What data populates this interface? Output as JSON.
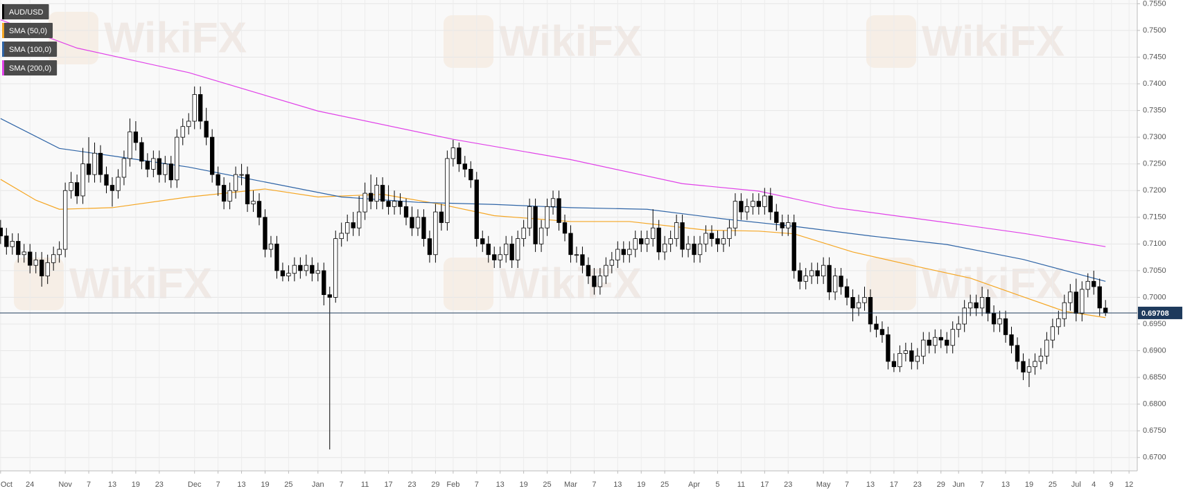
{
  "chart_data": {
    "type": "candlestick",
    "watermark": "WikiFX",
    "xlim": [
      -0.1,
      193.4
    ],
    "ylim": [
      0.6675,
      0.7557
    ],
    "grid": true,
    "legend": "top-left",
    "last_price": 0.69708,
    "last_price_color": "#1e3a5c",
    "candles": {
      "name": "AUD/USD",
      "color": "#000000",
      "up_color": "#ffffff",
      "down_color": "#000000",
      "open": [
        0.713,
        0.7115,
        0.7095,
        0.7105,
        0.708,
        0.7085,
        0.706,
        0.707,
        0.704,
        0.7065,
        0.708,
        0.709,
        0.72,
        0.7215,
        0.719,
        0.725,
        0.723,
        0.727,
        0.723,
        0.721,
        0.72,
        0.7225,
        0.726,
        0.731,
        0.729,
        0.7255,
        0.724,
        0.726,
        0.723,
        0.725,
        0.722,
        0.73,
        0.732,
        0.733,
        0.738,
        0.733,
        0.73,
        0.723,
        0.721,
        0.718,
        0.72,
        0.723,
        0.723,
        0.7175,
        0.718,
        0.715,
        0.709,
        0.71,
        0.705,
        0.704,
        0.7045,
        0.706,
        0.705,
        0.706,
        0.7045,
        0.705,
        0.7005,
        0.7,
        0.711,
        0.712,
        0.714,
        0.713,
        0.716,
        0.7195,
        0.718,
        0.721,
        0.718,
        0.717,
        0.718,
        0.717,
        0.715,
        0.713,
        0.715,
        0.711,
        0.708,
        0.716,
        0.714,
        0.726,
        0.728,
        0.725,
        0.724,
        0.722,
        0.711,
        0.71,
        0.708,
        0.707,
        0.708,
        0.71,
        0.707,
        0.711,
        0.713,
        0.717,
        0.71,
        0.713,
        0.717,
        0.7185,
        0.714,
        0.712,
        0.708,
        0.708,
        0.706,
        0.704,
        0.702,
        0.704,
        0.706,
        0.707,
        0.709,
        0.708,
        0.709,
        0.711,
        0.71,
        0.711,
        0.713,
        0.7085,
        0.71,
        0.711,
        0.714,
        0.709,
        0.71,
        0.708,
        0.71,
        0.712,
        0.711,
        0.71,
        0.711,
        0.713,
        0.718,
        0.716,
        0.717,
        0.718,
        0.717,
        0.719,
        0.716,
        0.714,
        0.713,
        0.714,
        0.705,
        0.703,
        0.704,
        0.705,
        0.704,
        0.706,
        0.701,
        0.704,
        0.702,
        0.7,
        0.698,
        0.699,
        0.7,
        0.695,
        0.694,
        0.693,
        0.688,
        0.687,
        0.6895,
        0.69,
        0.688,
        0.689,
        0.692,
        0.691,
        0.6925,
        0.692,
        0.691,
        0.694,
        0.695,
        0.698,
        0.699,
        0.698,
        0.7,
        0.697,
        0.695,
        0.696,
        0.693,
        0.691,
        0.688,
        0.686,
        0.687,
        0.688,
        0.689,
        0.692,
        0.6945,
        0.696,
        0.699,
        0.701,
        0.697,
        0.7015,
        0.703,
        0.702,
        0.698
      ],
      "high": [
        0.7145,
        0.713,
        0.712,
        0.712,
        0.71,
        0.71,
        0.7085,
        0.7085,
        0.708,
        0.7095,
        0.7105,
        0.7215,
        0.7235,
        0.723,
        0.728,
        0.73,
        0.729,
        0.7285,
        0.7245,
        0.7225,
        0.724,
        0.7275,
        0.7335,
        0.733,
        0.73,
        0.727,
        0.7275,
        0.7275,
        0.7265,
        0.7265,
        0.7315,
        0.7335,
        0.7345,
        0.7395,
        0.7395,
        0.7355,
        0.7315,
        0.7245,
        0.7225,
        0.7215,
        0.7245,
        0.725,
        0.7245,
        0.72,
        0.7195,
        0.7165,
        0.7115,
        0.7115,
        0.7065,
        0.706,
        0.7075,
        0.7075,
        0.708,
        0.7075,
        0.7065,
        0.7065,
        0.702,
        0.7125,
        0.714,
        0.7155,
        0.716,
        0.719,
        0.7215,
        0.723,
        0.7225,
        0.7225,
        0.721,
        0.72,
        0.7195,
        0.7185,
        0.717,
        0.7165,
        0.7165,
        0.7125,
        0.7175,
        0.7175,
        0.7275,
        0.7295,
        0.729,
        0.7265,
        0.7255,
        0.7235,
        0.7125,
        0.7115,
        0.7095,
        0.7095,
        0.7115,
        0.7115,
        0.7125,
        0.7145,
        0.7185,
        0.7185,
        0.7145,
        0.7185,
        0.72,
        0.72,
        0.7155,
        0.7135,
        0.7095,
        0.7095,
        0.7075,
        0.7055,
        0.7055,
        0.7075,
        0.7085,
        0.7105,
        0.7105,
        0.7105,
        0.7125,
        0.7125,
        0.7125,
        0.7165,
        0.7145,
        0.7115,
        0.7125,
        0.7155,
        0.7155,
        0.7115,
        0.7115,
        0.7115,
        0.7135,
        0.7135,
        0.7125,
        0.7125,
        0.7145,
        0.7195,
        0.7195,
        0.7185,
        0.7195,
        0.7195,
        0.7205,
        0.7205,
        0.7175,
        0.7155,
        0.7155,
        0.7155,
        0.7065,
        0.7055,
        0.7065,
        0.7065,
        0.7075,
        0.7075,
        0.7055,
        0.7055,
        0.7035,
        0.7015,
        0.7005,
        0.702,
        0.7015,
        0.6965,
        0.6955,
        0.6945,
        0.6895,
        0.691,
        0.6915,
        0.6915,
        0.6905,
        0.6935,
        0.6935,
        0.694,
        0.694,
        0.6935,
        0.6955,
        0.6965,
        0.6995,
        0.7005,
        0.7005,
        0.702,
        0.7015,
        0.6985,
        0.6975,
        0.6975,
        0.6945,
        0.6925,
        0.6895,
        0.6885,
        0.6895,
        0.6905,
        0.6935,
        0.696,
        0.6975,
        0.7005,
        0.7025,
        0.7035,
        0.703,
        0.7045,
        0.705,
        0.7035,
        0.6995
      ],
      "low": [
        0.71,
        0.708,
        0.708,
        0.7065,
        0.7065,
        0.7045,
        0.7045,
        0.702,
        0.7025,
        0.705,
        0.7065,
        0.7075,
        0.7185,
        0.7175,
        0.7175,
        0.7215,
        0.7215,
        0.7215,
        0.7195,
        0.717,
        0.7185,
        0.721,
        0.7245,
        0.7275,
        0.724,
        0.7225,
        0.7225,
        0.7215,
        0.7215,
        0.7205,
        0.7205,
        0.7285,
        0.7305,
        0.7315,
        0.7315,
        0.7285,
        0.7215,
        0.719,
        0.7165,
        0.7165,
        0.7185,
        0.721,
        0.716,
        0.716,
        0.7135,
        0.7075,
        0.7075,
        0.7035,
        0.703,
        0.703,
        0.703,
        0.7035,
        0.704,
        0.703,
        0.703,
        0.6985,
        0.6715,
        0.699,
        0.7095,
        0.7105,
        0.7115,
        0.7115,
        0.7145,
        0.7165,
        0.7165,
        0.7165,
        0.7155,
        0.7155,
        0.7155,
        0.7135,
        0.7115,
        0.7115,
        0.7095,
        0.7065,
        0.7065,
        0.7125,
        0.7125,
        0.7245,
        0.7235,
        0.7225,
        0.7205,
        0.7095,
        0.7085,
        0.7065,
        0.7055,
        0.7055,
        0.7065,
        0.7055,
        0.7055,
        0.7095,
        0.7115,
        0.7085,
        0.7085,
        0.7115,
        0.7155,
        0.7125,
        0.7105,
        0.7065,
        0.7065,
        0.7045,
        0.7025,
        0.7005,
        0.7005,
        0.7025,
        0.7045,
        0.7055,
        0.7065,
        0.7065,
        0.7075,
        0.7085,
        0.7085,
        0.7095,
        0.707,
        0.707,
        0.7085,
        0.7095,
        0.7075,
        0.7075,
        0.7065,
        0.7065,
        0.7085,
        0.7095,
        0.7085,
        0.7085,
        0.7095,
        0.7115,
        0.7145,
        0.7145,
        0.7155,
        0.7155,
        0.7155,
        0.7145,
        0.7125,
        0.7115,
        0.7115,
        0.7035,
        0.7015,
        0.7015,
        0.7025,
        0.7025,
        0.7025,
        0.6995,
        0.6995,
        0.7005,
        0.6985,
        0.6955,
        0.6965,
        0.6975,
        0.6935,
        0.6925,
        0.6915,
        0.6865,
        0.686,
        0.686,
        0.688,
        0.6865,
        0.6865,
        0.6875,
        0.6895,
        0.6895,
        0.6905,
        0.6895,
        0.6895,
        0.6925,
        0.6935,
        0.6965,
        0.6965,
        0.6965,
        0.6955,
        0.6935,
        0.6935,
        0.6915,
        0.6895,
        0.6865,
        0.6845,
        0.6832,
        0.6855,
        0.6865,
        0.6875,
        0.6905,
        0.693,
        0.6945,
        0.6975,
        0.6955,
        0.6955,
        0.7,
        0.7005,
        0.6965,
        0.6965
      ],
      "close": [
        0.7115,
        0.7095,
        0.7105,
        0.708,
        0.7085,
        0.706,
        0.707,
        0.704,
        0.7065,
        0.708,
        0.709,
        0.72,
        0.7215,
        0.719,
        0.725,
        0.723,
        0.727,
        0.723,
        0.721,
        0.72,
        0.7225,
        0.726,
        0.731,
        0.729,
        0.7255,
        0.724,
        0.726,
        0.723,
        0.725,
        0.722,
        0.73,
        0.732,
        0.733,
        0.738,
        0.733,
        0.73,
        0.723,
        0.721,
        0.718,
        0.72,
        0.723,
        0.723,
        0.7175,
        0.718,
        0.715,
        0.709,
        0.71,
        0.705,
        0.704,
        0.7045,
        0.706,
        0.705,
        0.706,
        0.7045,
        0.705,
        0.7005,
        0.7,
        0.711,
        0.712,
        0.714,
        0.713,
        0.716,
        0.7195,
        0.718,
        0.721,
        0.718,
        0.717,
        0.718,
        0.717,
        0.715,
        0.713,
        0.715,
        0.711,
        0.708,
        0.716,
        0.714,
        0.726,
        0.728,
        0.725,
        0.724,
        0.722,
        0.711,
        0.71,
        0.708,
        0.707,
        0.708,
        0.71,
        0.707,
        0.711,
        0.713,
        0.717,
        0.71,
        0.713,
        0.717,
        0.7185,
        0.714,
        0.712,
        0.708,
        0.708,
        0.706,
        0.704,
        0.702,
        0.704,
        0.706,
        0.707,
        0.709,
        0.708,
        0.709,
        0.711,
        0.71,
        0.711,
        0.713,
        0.7085,
        0.71,
        0.711,
        0.714,
        0.709,
        0.71,
        0.708,
        0.71,
        0.712,
        0.711,
        0.71,
        0.711,
        0.713,
        0.718,
        0.716,
        0.717,
        0.718,
        0.717,
        0.719,
        0.716,
        0.714,
        0.713,
        0.714,
        0.705,
        0.703,
        0.704,
        0.705,
        0.704,
        0.706,
        0.701,
        0.704,
        0.702,
        0.7,
        0.698,
        0.699,
        0.7,
        0.695,
        0.694,
        0.693,
        0.688,
        0.687,
        0.6895,
        0.69,
        0.688,
        0.689,
        0.692,
        0.691,
        0.6925,
        0.692,
        0.691,
        0.694,
        0.695,
        0.698,
        0.699,
        0.698,
        0.7,
        0.697,
        0.695,
        0.696,
        0.693,
        0.691,
        0.688,
        0.686,
        0.687,
        0.688,
        0.689,
        0.692,
        0.6945,
        0.696,
        0.699,
        0.701,
        0.697,
        0.7015,
        0.703,
        0.702,
        0.698,
        0.6971
      ]
    },
    "series": [
      {
        "name": "SMA (50,0)",
        "color": "#f5a623",
        "x": [
          0,
          6,
          10,
          19,
          32,
          45,
          54,
          65,
          75,
          84,
          97,
          107,
          120,
          129,
          135,
          145,
          155,
          165,
          174,
          181,
          188
        ],
        "values": [
          0.7221,
          0.7182,
          0.7165,
          0.7168,
          0.7188,
          0.7203,
          0.7188,
          0.7193,
          0.7174,
          0.7153,
          0.7142,
          0.7142,
          0.7126,
          0.7124,
          0.7119,
          0.7085,
          0.706,
          0.7036,
          0.7001,
          0.6974,
          0.6962
        ]
      },
      {
        "name": "SMA (100,0)",
        "color": "#2e64a6",
        "x": [
          0,
          10,
          19,
          32,
          45,
          58,
          71,
          84,
          97,
          110,
          123,
          135,
          148,
          161,
          174,
          188
        ],
        "values": [
          0.7335,
          0.7279,
          0.7265,
          0.7244,
          0.7216,
          0.7188,
          0.7178,
          0.7174,
          0.7168,
          0.7165,
          0.7147,
          0.7133,
          0.7115,
          0.7099,
          0.7071,
          0.703
        ]
      },
      {
        "name": "SMA (200,0)",
        "color": "#e040e8",
        "x": [
          0,
          13,
          32,
          54,
          77,
          97,
          116,
          129,
          142,
          161,
          174,
          188
        ],
        "values": [
          0.752,
          0.7467,
          0.7421,
          0.7349,
          0.7296,
          0.7258,
          0.7213,
          0.7199,
          0.7168,
          0.714,
          0.712,
          0.7095
        ]
      }
    ],
    "yticks": [
      {
        "value": 0.755,
        "label": "0.7550"
      },
      {
        "value": 0.75,
        "label": "0.7500"
      },
      {
        "value": 0.745,
        "label": "0.7450"
      },
      {
        "value": 0.74,
        "label": "0.7400"
      },
      {
        "value": 0.735,
        "label": "0.7350"
      },
      {
        "value": 0.73,
        "label": "0.7300"
      },
      {
        "value": 0.725,
        "label": "0.7250"
      },
      {
        "value": 0.72,
        "label": "0.7200"
      },
      {
        "value": 0.715,
        "label": "0.7150"
      },
      {
        "value": 0.71,
        "label": "0.7100"
      },
      {
        "value": 0.705,
        "label": "0.7050"
      },
      {
        "value": 0.7,
        "label": "0.7000"
      },
      {
        "value": 0.695,
        "label": "0.6950"
      },
      {
        "value": 0.69,
        "label": "0.6900"
      },
      {
        "value": 0.685,
        "label": "0.6850"
      },
      {
        "value": 0.68,
        "label": "0.6800"
      },
      {
        "value": 0.675,
        "label": "0.6750"
      },
      {
        "value": 0.67,
        "label": "0.6700"
      }
    ],
    "xticks": [
      {
        "value": 0,
        "label": "Oct"
      },
      {
        "value": 5,
        "label": "24"
      },
      {
        "value": 11,
        "label": "Nov"
      },
      {
        "value": 15,
        "label": "7"
      },
      {
        "value": 19,
        "label": "13"
      },
      {
        "value": 23,
        "label": "19"
      },
      {
        "value": 27,
        "label": "23"
      },
      {
        "value": 33,
        "label": "Dec"
      },
      {
        "value": 37,
        "label": "7"
      },
      {
        "value": 41,
        "label": "13"
      },
      {
        "value": 45,
        "label": "19"
      },
      {
        "value": 49,
        "label": "25"
      },
      {
        "value": 54,
        "label": "Jan"
      },
      {
        "value": 58,
        "label": "7"
      },
      {
        "value": 62,
        "label": "11"
      },
      {
        "value": 66,
        "label": "17"
      },
      {
        "value": 70,
        "label": "23"
      },
      {
        "value": 74,
        "label": "29"
      },
      {
        "value": 77,
        "label": "Feb"
      },
      {
        "value": 81,
        "label": "7"
      },
      {
        "value": 85,
        "label": "13"
      },
      {
        "value": 89,
        "label": "19"
      },
      {
        "value": 93,
        "label": "25"
      },
      {
        "value": 97,
        "label": "Mar"
      },
      {
        "value": 101,
        "label": "7"
      },
      {
        "value": 105,
        "label": "13"
      },
      {
        "value": 109,
        "label": "19"
      },
      {
        "value": 113,
        "label": "25"
      },
      {
        "value": 118,
        "label": "Apr"
      },
      {
        "value": 122,
        "label": "5"
      },
      {
        "value": 126,
        "label": "11"
      },
      {
        "value": 130,
        "label": "17"
      },
      {
        "value": 134,
        "label": "23"
      },
      {
        "value": 140,
        "label": "May"
      },
      {
        "value": 144,
        "label": "7"
      },
      {
        "value": 148,
        "label": "13"
      },
      {
        "value": 152,
        "label": "17"
      },
      {
        "value": 156,
        "label": "23"
      },
      {
        "value": 160,
        "label": "29"
      },
      {
        "value": 163,
        "label": "Jun"
      },
      {
        "value": 167,
        "label": "7"
      },
      {
        "value": 171,
        "label": "13"
      },
      {
        "value": 175,
        "label": "19"
      },
      {
        "value": 179,
        "label": "25"
      },
      {
        "value": 183,
        "label": "Jul"
      },
      {
        "value": 186,
        "label": "4"
      },
      {
        "value": 189,
        "label": "9"
      },
      {
        "value": 192,
        "label": "12"
      }
    ]
  }
}
